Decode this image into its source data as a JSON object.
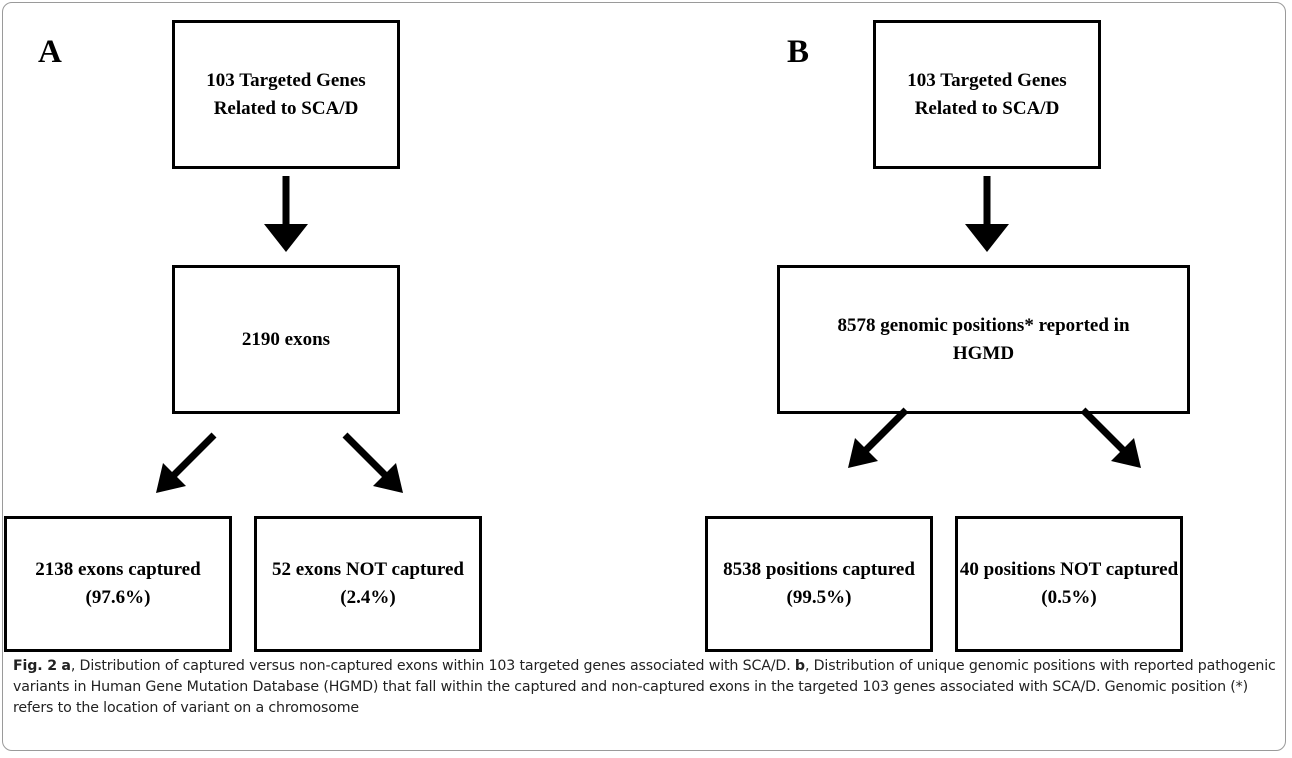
{
  "panel_a": {
    "letter": "A",
    "top_line1": "103 Targeted Genes",
    "top_line2": "Related to SCA/D",
    "middle": "2190 exons",
    "left_line1": "2138 exons captured",
    "left_line2": "(97.6%)",
    "right_line1": "52 exons NOT captured",
    "right_line2": "(2.4%)"
  },
  "panel_b": {
    "letter": "B",
    "top_line1": "103 Targeted Genes",
    "top_line2": "Related to SCA/D",
    "middle_line1": "8578 genomic positions* reported in",
    "middle_line2": "HGMD",
    "left_line1": "8538 positions captured",
    "left_line2": "(99.5%)",
    "right_line1": "40 positions NOT  captured",
    "right_line2": "(0.5%)"
  },
  "caption": {
    "fig_label": "Fig. 2",
    "a_label": "a",
    "a_text": ", Distribution of captured versus non-captured exons within 103 targeted genes associated with SCA/D. ",
    "b_label": "b",
    "b_text": ", Distribution of unique genomic positions with reported pathogenic variants in Human Gene Mutation Database (HGMD) that fall within the captured and non-captured exons in the targeted 103 genes associated with SCA/D. Genomic position (*) refers to the location of variant on a chromosome"
  }
}
